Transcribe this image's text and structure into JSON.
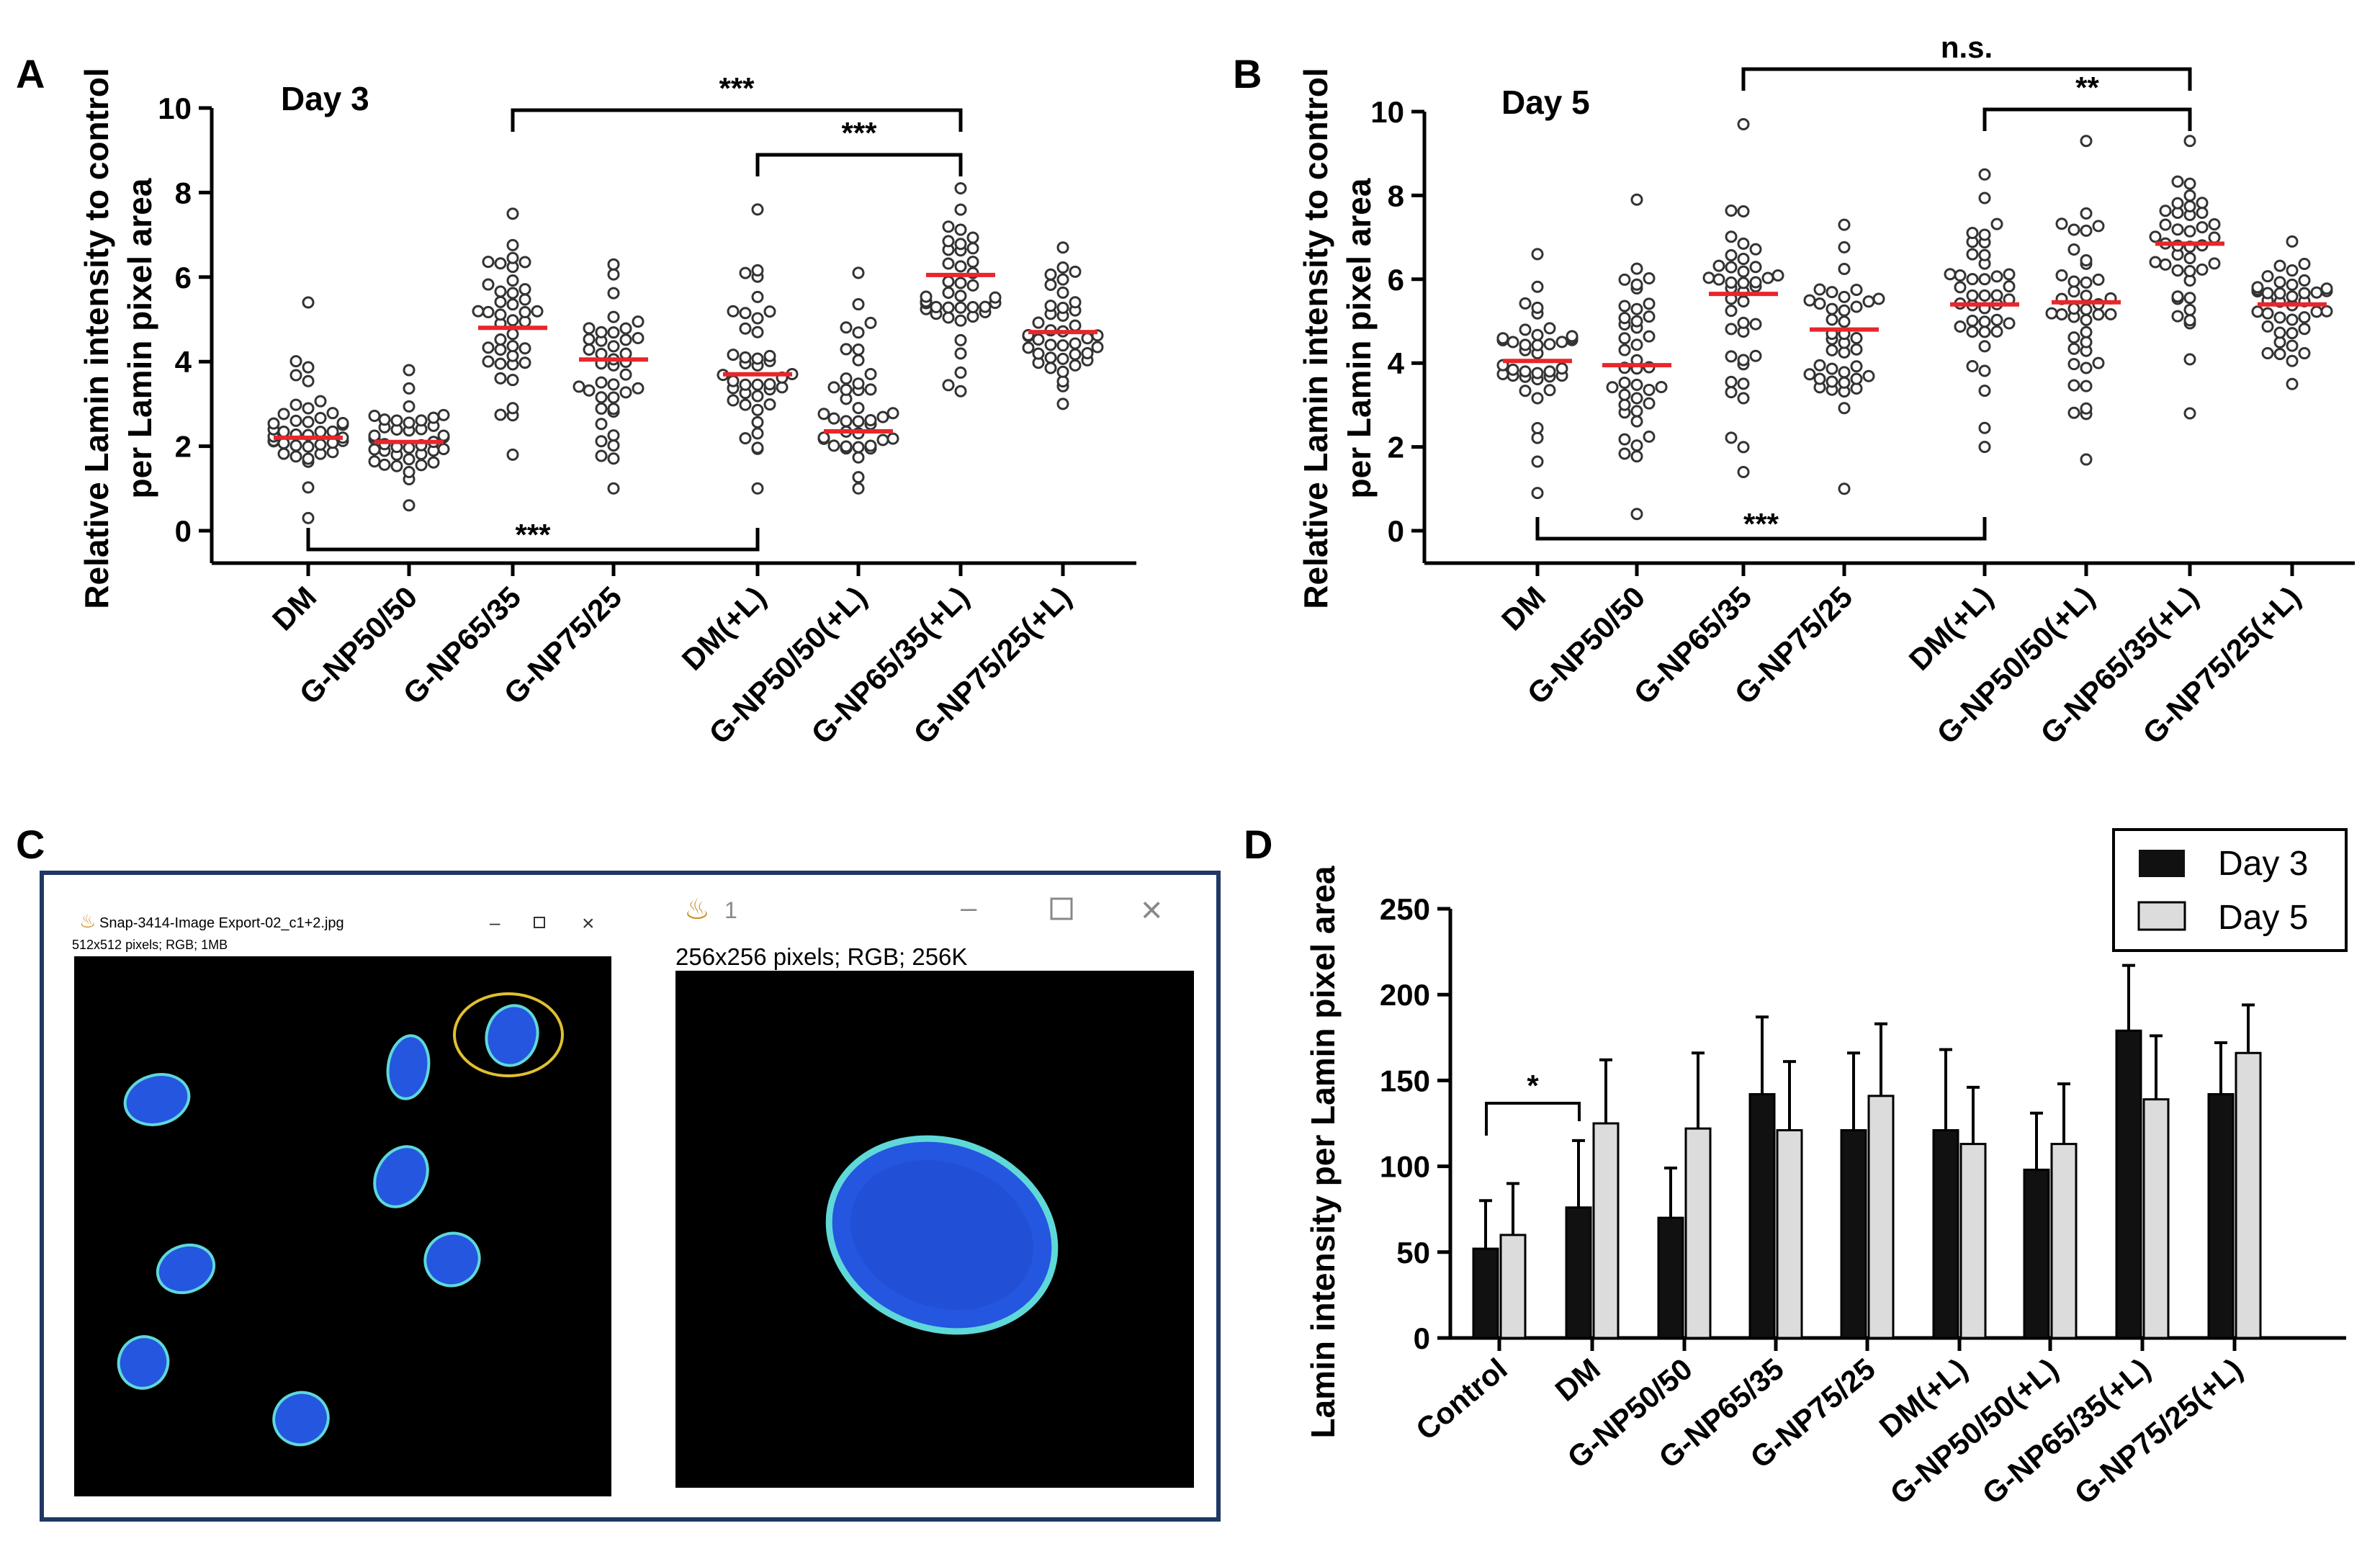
{
  "colors": {
    "median": "#e8262b",
    "day3_bar": "#111111",
    "day5_bar": "#dcdcdc",
    "frame": "#1f3864",
    "nucleus": "#2456e0",
    "nucleus_edge": "#5fd8d8",
    "roi": "#e0c030"
  },
  "panels": {
    "A": {
      "letter": "A"
    },
    "B": {
      "letter": "B"
    },
    "C": {
      "letter": "C"
    },
    "D": {
      "letter": "D"
    }
  },
  "chart_data": [
    {
      "id": "A",
      "type": "scatter",
      "title": "Day 3",
      "ylabel_line1": "Relative Lamin intensity to control",
      "ylabel_line2": "per Lamin pixel area",
      "ylim": [
        0,
        10
      ],
      "yticks": [
        "0",
        "2",
        "4",
        "6",
        "8",
        "10"
      ],
      "categories": [
        "DM",
        "G-NP50/50",
        "G-NP65/35",
        "G-NP75/25",
        "DM(+L)",
        "G-NP50/50(+L)",
        "G-NP65/35(+L)",
        "G-NP75/25(+L)"
      ],
      "medians": [
        2.2,
        2.1,
        4.8,
        4.05,
        3.7,
        2.35,
        6.05,
        4.7
      ],
      "ranges": [
        [
          0.3,
          5.4
        ],
        [
          0.6,
          3.8
        ],
        [
          1.8,
          7.5
        ],
        [
          1.0,
          6.3
        ],
        [
          1.0,
          7.6
        ],
        [
          1.0,
          6.1
        ],
        [
          3.3,
          8.1
        ],
        [
          3.0,
          6.7
        ]
      ],
      "significance": [
        {
          "from": 2,
          "to": 6,
          "label": "***",
          "position": "top"
        },
        {
          "from": 4,
          "to": 6,
          "label": "***",
          "position": "top"
        },
        {
          "from": 0,
          "to": 4,
          "label": "***",
          "position": "bottom"
        }
      ]
    },
    {
      "id": "B",
      "type": "scatter",
      "title": "Day 5",
      "ylabel_line1": "Relative Lamin intensity to control",
      "ylabel_line2": "per Lamin pixel area",
      "ylim": [
        0,
        10
      ],
      "yticks": [
        "0",
        "2",
        "4",
        "6",
        "8",
        "10"
      ],
      "categories": [
        "DM",
        "G-NP50/50",
        "G-NP65/35",
        "G-NP75/25",
        "DM(+L)",
        "G-NP50/50(+L)",
        "G-NP65/35(+L)",
        "G-NP75/25(+L)"
      ],
      "medians": [
        4.05,
        3.95,
        5.65,
        4.8,
        5.4,
        5.45,
        6.85,
        5.4
      ],
      "ranges": [
        [
          0.9,
          6.6
        ],
        [
          0.4,
          7.9
        ],
        [
          1.4,
          9.7
        ],
        [
          1.0,
          7.3
        ],
        [
          2.0,
          8.5
        ],
        [
          1.7,
          9.3
        ],
        [
          2.8,
          9.3
        ],
        [
          3.5,
          6.9
        ]
      ],
      "significance": [
        {
          "from": 2,
          "to": 6,
          "label": "n.s.",
          "position": "top"
        },
        {
          "from": 4,
          "to": 6,
          "label": "**",
          "position": "top"
        },
        {
          "from": 0,
          "to": 4,
          "label": "***",
          "position": "bottom"
        }
      ]
    },
    {
      "id": "D",
      "type": "bar",
      "ylabel": "Lamin intensity per Lamin pixel area",
      "ylim": [
        0,
        250
      ],
      "yticks": [
        "0",
        "50",
        "100",
        "150",
        "200",
        "250"
      ],
      "categories": [
        "Control",
        "DM",
        "G-NP50/50",
        "G-NP65/35",
        "G-NP75/25",
        "DM(+L)",
        "G-NP50/50(+L)",
        "G-NP65/35(+L)",
        "G-NP75/25(+L)"
      ],
      "series": [
        {
          "name": "Day 3",
          "values": [
            52,
            76,
            70,
            142,
            121,
            121,
            98,
            179,
            142
          ],
          "errors": [
            28,
            39,
            29,
            45,
            45,
            47,
            33,
            38,
            30
          ]
        },
        {
          "name": "Day 5",
          "values": [
            60,
            125,
            122,
            121,
            141,
            113,
            113,
            139,
            166
          ],
          "errors": [
            30,
            37,
            44,
            40,
            42,
            33,
            35,
            37,
            28
          ]
        }
      ],
      "legend": "top-right",
      "significance": [
        {
          "from": 0,
          "to": 1,
          "label": "*"
        }
      ]
    }
  ],
  "panel_c": {
    "window1": {
      "title": "Snap-3414-Image Export-02_c1+2.jpg",
      "info": "512x512 pixels; RGB; 1MB",
      "minimize": "–",
      "maximize": "□",
      "close": "×"
    },
    "window2": {
      "title": "1",
      "info": "256x256 pixels; RGB; 256K",
      "minimize": "–",
      "maximize": "□",
      "close": "×"
    }
  }
}
